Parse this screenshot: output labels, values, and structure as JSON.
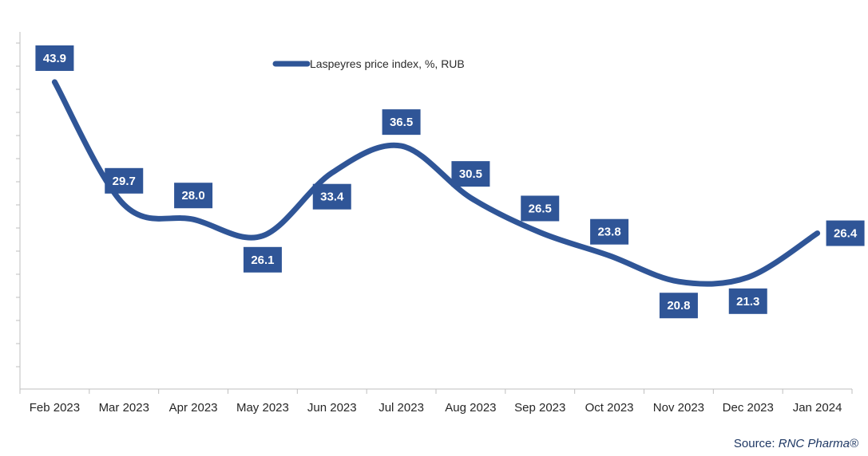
{
  "chart_data": {
    "type": "line",
    "categories": [
      "Feb 2023",
      "Mar 2023",
      "Apr 2023",
      "May 2023",
      "Jun 2023",
      "Jul 2023",
      "Aug 2023",
      "Sep 2023",
      "Oct 2023",
      "Nov 2023",
      "Dec 2023",
      "Jan 2024"
    ],
    "series": [
      {
        "name": "Laspeyres price index, %, RUB",
        "values": [
          43.9,
          29.7,
          28.0,
          26.1,
          33.4,
          36.5,
          30.5,
          26.5,
          23.8,
          20.8,
          21.3,
          26.4
        ]
      }
    ],
    "title": "",
    "xlabel": "",
    "ylabel": "",
    "legend_position": "top-center",
    "grid": false,
    "line_color": "#2f5597",
    "label_bg_color": "#2f5597",
    "label_text_color": "#ffffff"
  },
  "source": {
    "prefix": "Source: ",
    "name": "RNC Pharma®"
  }
}
